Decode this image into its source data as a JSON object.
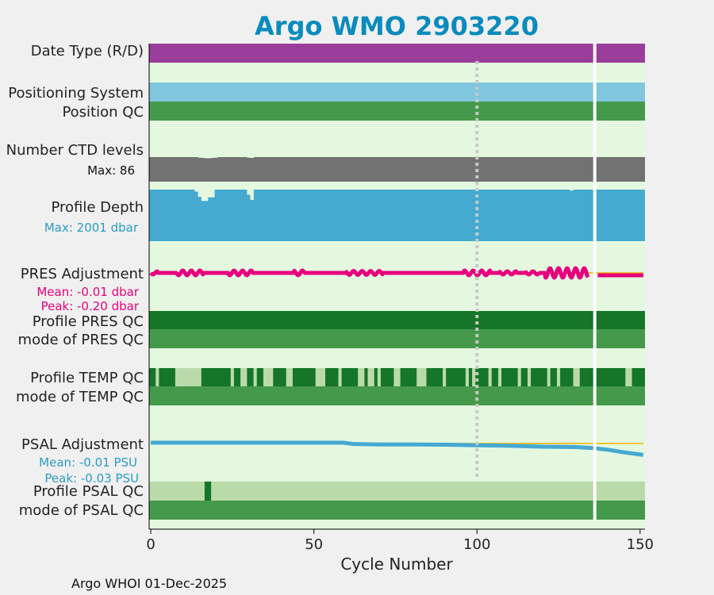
{
  "chart_data": {
    "type": "status-timeline",
    "title": "Argo WMO 2903220",
    "xlabel": "Cycle Number",
    "xlim": [
      -0.5,
      151.5
    ],
    "xticks": [
      0,
      50,
      100,
      150
    ],
    "xtick_labels": [
      "0",
      "50",
      "100",
      "150"
    ],
    "gap_cycle": 136,
    "marker_cycle": 100,
    "footer": "Argo WHOI 01-Dec-2025",
    "rows": [
      {
        "key": "date_type",
        "label": "Date Type (R/D)",
        "segments": [
          {
            "from": 0,
            "to": 151,
            "color": "#9b3d9a"
          }
        ]
      },
      {
        "key": "positioning",
        "label": "Positioning System",
        "segments": [
          {
            "from": 0,
            "to": 151,
            "color": "#80c6de"
          }
        ]
      },
      {
        "key": "position_qc",
        "label": "Position QC",
        "segments": [
          {
            "from": 0,
            "to": 151,
            "color": "#44994a"
          }
        ]
      },
      {
        "key": "ctd_levels",
        "label": "Number CTD levels",
        "sublabel": "Max: 86",
        "max": 86,
        "color": "#727272",
        "dips": [
          {
            "cycle": 15,
            "value": 84
          },
          {
            "cycle": 16,
            "value": 83
          },
          {
            "cycle": 17,
            "value": 82
          },
          {
            "cycle": 18,
            "value": 82
          },
          {
            "cycle": 19,
            "value": 83
          },
          {
            "cycle": 20,
            "value": 84
          },
          {
            "cycle": 30,
            "value": 84
          },
          {
            "cycle": 31,
            "value": 83
          }
        ]
      },
      {
        "key": "profile_depth",
        "label": "Profile Depth",
        "sublabel": "Max: 2001 dbar",
        "max": 2001,
        "color": "#44aad0",
        "dips": [
          {
            "cycle": 14,
            "value": 1920
          },
          {
            "cycle": 15,
            "value": 1720
          },
          {
            "cycle": 16,
            "value": 1560
          },
          {
            "cycle": 17,
            "value": 1560
          },
          {
            "cycle": 18,
            "value": 1700
          },
          {
            "cycle": 19,
            "value": 1700
          },
          {
            "cycle": 30,
            "value": 1800
          },
          {
            "cycle": 31,
            "value": 1600
          },
          {
            "cycle": 129,
            "value": 1960
          }
        ]
      },
      {
        "key": "pres_adj",
        "label": "PRES Adjustment",
        "sublabels": [
          "Mean: -0.01 dbar",
          "Peak: -0.20 dbar"
        ],
        "color": "#e6007e"
      },
      {
        "key": "profile_pres_qc",
        "label": "Profile PRES QC",
        "segments": [
          {
            "from": 0,
            "to": 151,
            "color": "#157528"
          }
        ]
      },
      {
        "key": "mode_pres_qc",
        "label": "mode of PRES QC",
        "segments": [
          {
            "from": 0,
            "to": 151,
            "color": "#44994a"
          }
        ]
      },
      {
        "key": "profile_temp_qc",
        "label": "Profile TEMP QC",
        "base_color": "#157528",
        "light_color": "#bbdaaa",
        "light_runs": [
          [
            2,
            2
          ],
          [
            8,
            15
          ],
          [
            25,
            25
          ],
          [
            28,
            29
          ],
          [
            32,
            32
          ],
          [
            35,
            37
          ],
          [
            42,
            43
          ],
          [
            51,
            53
          ],
          [
            58,
            58
          ],
          [
            64,
            65
          ],
          [
            67,
            68
          ],
          [
            70,
            70
          ],
          [
            75,
            76
          ],
          [
            82,
            84
          ],
          [
            90,
            90
          ],
          [
            97,
            97
          ],
          [
            99,
            99
          ],
          [
            104,
            104
          ],
          [
            107,
            107
          ],
          [
            113,
            113
          ],
          [
            116,
            116
          ],
          [
            122,
            122
          ],
          [
            125,
            125
          ],
          [
            130,
            131
          ],
          [
            146,
            147
          ]
        ]
      },
      {
        "key": "mode_temp_qc",
        "label": "mode of TEMP QC",
        "segments": [
          {
            "from": 0,
            "to": 151,
            "color": "#44994a"
          }
        ]
      },
      {
        "key": "psal_adj",
        "label": "PSAL Adjustment",
        "sublabels": [
          "Mean: -0.01 PSU",
          "Peak: -0.03 PSU"
        ],
        "color": "#45a9d2",
        "series": {
          "x": [
            0,
            50,
            59,
            62,
            65,
            70,
            80,
            90,
            100,
            110,
            120,
            130,
            135,
            140,
            145,
            151
          ],
          "y": [
            0.0,
            0.0,
            0.0,
            -0.003,
            -0.0035,
            -0.004,
            -0.004,
            -0.0045,
            -0.006,
            -0.007,
            -0.009,
            -0.01,
            -0.012,
            -0.016,
            -0.022,
            -0.028
          ]
        }
      },
      {
        "key": "profile_psal_qc",
        "label": "Profile PSAL QC",
        "base_color": "#bbdaaa",
        "dark_color": "#157528",
        "dark_runs": [
          [
            17,
            18
          ]
        ]
      },
      {
        "key": "mode_psal_qc",
        "label": "mode of PSAL QC",
        "segments": [
          {
            "from": 0,
            "to": 151,
            "color": "#44994a"
          }
        ]
      }
    ]
  },
  "colors": {
    "plot_bg": "#e4f8e0",
    "page_bg": "#f0f0f0",
    "title": "#0a8bbd",
    "ref_line": "#f0b000",
    "marker_line": "#c8c8c8"
  }
}
